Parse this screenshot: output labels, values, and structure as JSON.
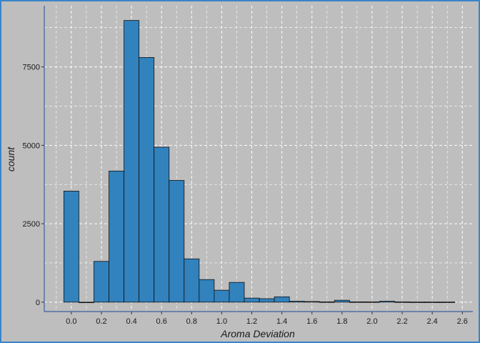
{
  "chart_data": {
    "type": "bar",
    "title": "",
    "xlabel": "Aroma Deviation",
    "ylabel": "count",
    "xlim": [
      -0.18,
      2.67
    ],
    "ylim": [
      -300,
      9450
    ],
    "grid": true,
    "bin_width": 0.1,
    "x_ticks": [
      "0.0",
      "0.2",
      "0.4",
      "0.6",
      "0.8",
      "1.0",
      "1.2",
      "1.4",
      "1.6",
      "1.8",
      "2.0",
      "2.2",
      "2.4",
      "2.6"
    ],
    "y_ticks": [
      "0",
      "2500",
      "5000",
      "7500"
    ],
    "x": [
      0.0,
      0.1,
      0.2,
      0.3,
      0.4,
      0.5,
      0.6,
      0.7,
      0.8,
      0.9,
      1.0,
      1.1,
      1.2,
      1.3,
      1.4,
      1.5,
      1.6,
      1.7,
      1.8,
      1.9,
      2.0,
      2.1,
      2.2,
      2.3,
      2.4,
      2.5
    ],
    "values": [
      3540,
      0,
      1300,
      4180,
      8980,
      7800,
      4940,
      3880,
      1380,
      720,
      380,
      630,
      130,
      110,
      170,
      30,
      20,
      10,
      60,
      10,
      10,
      30,
      10,
      5,
      5,
      5
    ],
    "colors": {
      "bar": "#3182bd",
      "bar_edge": "#111111",
      "panel": "#bebebe",
      "grid": "#ffffff",
      "axis": "#3a5fa0"
    }
  }
}
